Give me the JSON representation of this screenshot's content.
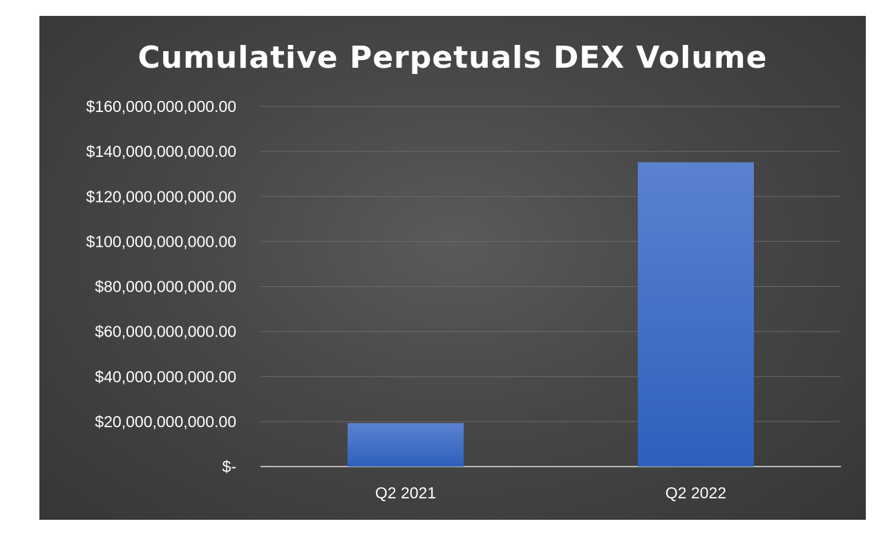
{
  "chart_data": {
    "type": "bar",
    "title": "Cumulative Perpetuals DEX Volume",
    "xlabel": "",
    "ylabel": "",
    "categories": [
      "Q2 2021",
      "Q2 2022"
    ],
    "values": [
      19300000000,
      135200000000
    ],
    "ylim": [
      0,
      160000000000
    ],
    "y_ticks": [
      0,
      20000000000,
      40000000000,
      60000000000,
      80000000000,
      100000000000,
      120000000000,
      140000000000,
      160000000000
    ],
    "y_tick_labels": [
      "$-",
      "$20,000,000,000.00",
      "$40,000,000,000.00",
      "$60,000,000,000.00",
      "$80,000,000,000.00",
      "$100,000,000,000.00",
      "$120,000,000,000.00",
      "$140,000,000,000.00",
      "$160,000,000,000.00"
    ],
    "grid": true,
    "legend": "none",
    "colors": {
      "bar_top": "#5b82d0",
      "bar_bottom": "#2e5fbd",
      "gridline": "#6a6a6a",
      "axis": "#b8b8b8",
      "text": "#ffffff"
    }
  }
}
